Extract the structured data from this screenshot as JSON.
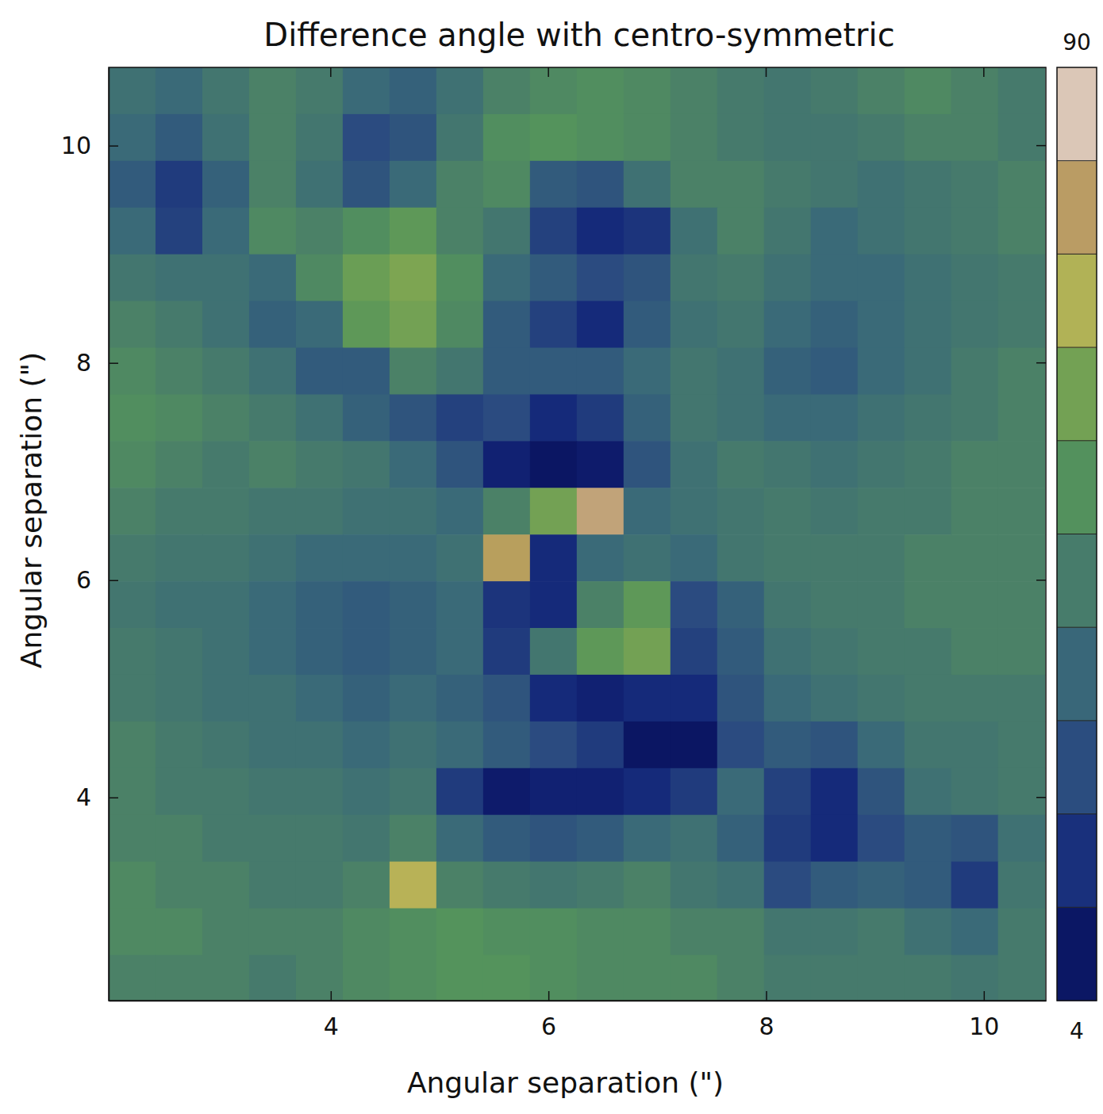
{
  "chart_data": {
    "type": "heatmap",
    "title": "Difference angle with centro-symmetric",
    "x_label": "Angular separation (\")",
    "y_label": "Angular separation (\")",
    "x": [
      2.175,
      2.605,
      3.035,
      3.465,
      3.895,
      4.325,
      4.755,
      5.185,
      5.615,
      6.045,
      6.475,
      6.905,
      7.335,
      7.765,
      8.195,
      8.625,
      9.055,
      9.485,
      9.915,
      10.345
    ],
    "y": [
      10.505,
      10.075,
      9.645,
      9.215,
      8.785,
      8.355,
      7.925,
      7.495,
      7.065,
      6.635,
      6.205,
      5.775,
      5.345,
      4.915,
      4.485,
      4.055,
      3.625,
      3.195,
      2.765,
      2.335
    ],
    "z": [
      [
        38,
        35,
        40,
        45,
        42,
        35,
        32,
        38,
        45,
        48,
        50,
        48,
        45,
        42,
        40,
        42,
        45,
        48,
        45,
        42
      ],
      [
        35,
        30,
        38,
        45,
        40,
        25,
        28,
        40,
        50,
        52,
        50,
        48,
        45,
        42,
        40,
        40,
        42,
        45,
        45,
        42
      ],
      [
        30,
        20,
        32,
        45,
        38,
        28,
        35,
        45,
        48,
        30,
        28,
        38,
        45,
        45,
        42,
        40,
        38,
        40,
        42,
        45
      ],
      [
        35,
        22,
        35,
        48,
        45,
        50,
        55,
        45,
        40,
        22,
        15,
        18,
        38,
        45,
        40,
        35,
        38,
        40,
        42,
        45
      ],
      [
        40,
        38,
        38,
        35,
        48,
        58,
        62,
        50,
        35,
        30,
        25,
        28,
        40,
        42,
        38,
        35,
        35,
        38,
        40,
        42
      ],
      [
        45,
        42,
        38,
        32,
        35,
        55,
        60,
        48,
        30,
        22,
        15,
        30,
        38,
        40,
        35,
        32,
        35,
        38,
        40,
        42
      ],
      [
        48,
        45,
        42,
        38,
        30,
        30,
        45,
        40,
        30,
        30,
        30,
        35,
        40,
        38,
        32,
        30,
        35,
        38,
        42,
        45
      ],
      [
        50,
        48,
        45,
        42,
        38,
        32,
        28,
        22,
        25,
        15,
        20,
        32,
        40,
        38,
        35,
        35,
        38,
        40,
        42,
        45
      ],
      [
        48,
        45,
        42,
        45,
        42,
        40,
        35,
        28,
        12,
        8,
        10,
        28,
        38,
        42,
        40,
        38,
        40,
        42,
        45,
        45
      ],
      [
        45,
        42,
        42,
        40,
        40,
        38,
        38,
        35,
        45,
        60,
        80,
        35,
        38,
        40,
        42,
        40,
        42,
        42,
        45,
        45
      ],
      [
        42,
        40,
        40,
        38,
        35,
        35,
        35,
        38,
        75,
        15,
        35,
        38,
        35,
        40,
        42,
        42,
        42,
        45,
        45,
        45
      ],
      [
        40,
        38,
        38,
        35,
        32,
        30,
        32,
        35,
        18,
        15,
        45,
        55,
        25,
        32,
        40,
        42,
        42,
        45,
        45,
        45
      ],
      [
        42,
        40,
        38,
        35,
        32,
        30,
        32,
        35,
        20,
        40,
        55,
        60,
        22,
        30,
        38,
        40,
        42,
        42,
        45,
        45
      ],
      [
        42,
        40,
        38,
        38,
        35,
        32,
        35,
        32,
        28,
        15,
        12,
        15,
        15,
        28,
        35,
        38,
        40,
        42,
        42,
        42
      ],
      [
        45,
        42,
        40,
        38,
        38,
        35,
        38,
        35,
        30,
        25,
        20,
        8,
        8,
        25,
        30,
        28,
        35,
        40,
        40,
        42
      ],
      [
        45,
        42,
        42,
        40,
        40,
        38,
        40,
        20,
        10,
        12,
        12,
        15,
        20,
        35,
        22,
        15,
        28,
        38,
        40,
        42
      ],
      [
        45,
        45,
        42,
        42,
        42,
        40,
        45,
        35,
        30,
        28,
        30,
        35,
        38,
        32,
        20,
        15,
        25,
        30,
        28,
        38
      ],
      [
        48,
        45,
        45,
        42,
        42,
        45,
        70,
        45,
        42,
        40,
        42,
        45,
        40,
        38,
        25,
        30,
        32,
        30,
        20,
        40
      ],
      [
        48,
        48,
        45,
        45,
        45,
        48,
        50,
        52,
        50,
        50,
        48,
        48,
        45,
        45,
        40,
        40,
        42,
        38,
        35,
        42
      ],
      [
        45,
        45,
        45,
        42,
        45,
        48,
        50,
        52,
        52,
        50,
        48,
        48,
        48,
        45,
        42,
        42,
        42,
        42,
        40,
        42
      ]
    ],
    "xlim": [
      1.96,
      10.57
    ],
    "ylim": [
      2.13,
      10.72
    ],
    "xticks": [
      4,
      6,
      8,
      10
    ],
    "yticks": [
      4,
      6,
      8,
      10
    ],
    "colorbar_range": [
      4,
      90
    ],
    "colorbar_ticks": [
      4,
      90
    ]
  }
}
